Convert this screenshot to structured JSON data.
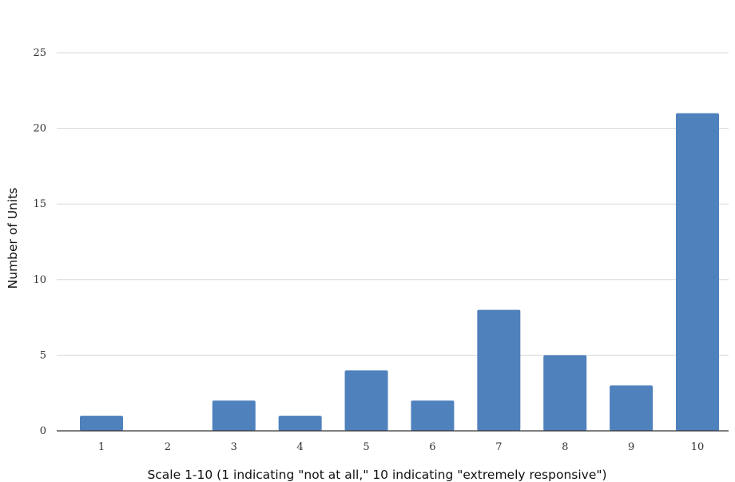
{
  "chart_data": {
    "type": "bar",
    "categories": [
      "1",
      "2",
      "3",
      "4",
      "5",
      "6",
      "7",
      "8",
      "9",
      "10"
    ],
    "values": [
      1,
      0,
      2,
      1,
      4,
      2,
      8,
      5,
      3,
      21
    ],
    "title": "",
    "xlabel": "Scale 1-10 (1 indicating \"not at all,\" 10 indicating \"extremely responsive\")",
    "ylabel": "Number of Units",
    "ylim": [
      0,
      25
    ],
    "yticks": [
      "0",
      "5",
      "10",
      "15",
      "20",
      "25"
    ],
    "grid": true,
    "bar_color": "#4f81bd",
    "grid_color": "#d9d9d9",
    "axis_color": "#333333"
  }
}
